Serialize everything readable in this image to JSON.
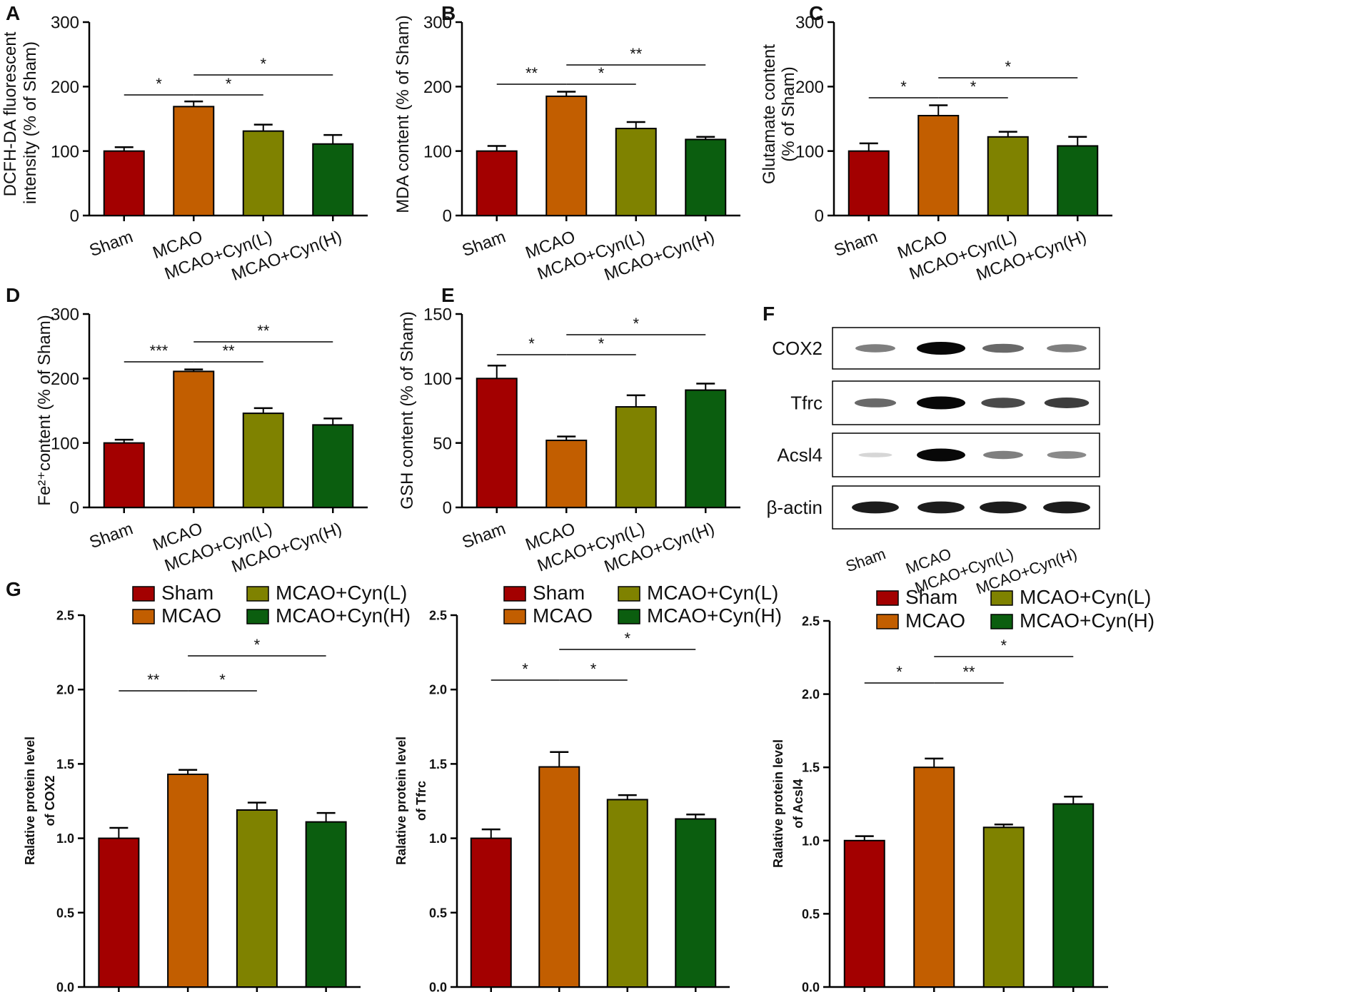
{
  "group_colors": [
    "#a30000",
    "#c25e00",
    "#7f8200",
    "#0b5e0f"
  ],
  "sig_line_color": "#000000",
  "groups": [
    "Sham",
    "MCAO",
    "MCAO+Cyn(L)",
    "MCAO+Cyn(H)"
  ],
  "chart_data": [
    {
      "id": "A",
      "type": "bar",
      "panel_letter": "A",
      "title": "",
      "ylabel_lines": [
        "DCFH-DA fluorescent",
        "intensity  (% of Sham)"
      ],
      "ylabel_bold": false,
      "categories": [
        "Sham",
        "MCAO",
        "MCAO+Cyn(L)",
        "MCAO+Cyn(H)"
      ],
      "values": [
        100,
        169,
        131,
        111
      ],
      "errors": [
        6,
        8,
        10,
        14
      ],
      "ylim": [
        0,
        300
      ],
      "yticks": [
        "0",
        "100",
        "200",
        "300"
      ],
      "significance": [
        {
          "from": 0,
          "to": 1,
          "label": "*",
          "level": 1
        },
        {
          "from": 1,
          "to": 2,
          "label": "*",
          "level": 1
        },
        {
          "from": 1,
          "to": 3,
          "label": "*",
          "level": 2
        }
      ]
    },
    {
      "id": "B",
      "type": "bar",
      "panel_letter": "B",
      "title": "",
      "ylabel_lines": [
        "MDA content  (% of Sham)"
      ],
      "ylabel_bold": false,
      "categories": [
        "Sham",
        "MCAO",
        "MCAO+Cyn(L)",
        "MCAO+Cyn(H)"
      ],
      "values": [
        100,
        185,
        135,
        118
      ],
      "errors": [
        8,
        7,
        10,
        4
      ],
      "ylim": [
        0,
        300
      ],
      "yticks": [
        "0",
        "100",
        "200",
        "300"
      ],
      "significance": [
        {
          "from": 0,
          "to": 1,
          "label": "**",
          "level": 1
        },
        {
          "from": 1,
          "to": 2,
          "label": "*",
          "level": 1
        },
        {
          "from": 1,
          "to": 3,
          "label": "**",
          "level": 2
        }
      ]
    },
    {
      "id": "C",
      "type": "bar",
      "panel_letter": "C",
      "title": "",
      "ylabel_lines": [
        "Glutamate content",
        "(% of Sham)"
      ],
      "ylabel_bold": false,
      "categories": [
        "Sham",
        "MCAO",
        "MCAO+Cyn(L)",
        "MCAO+Cyn(H)"
      ],
      "values": [
        100,
        155,
        122,
        108
      ],
      "errors": [
        12,
        16,
        8,
        14
      ],
      "ylim": [
        0,
        300
      ],
      "yticks": [
        "0",
        "100",
        "200",
        "300"
      ],
      "significance": [
        {
          "from": 0,
          "to": 1,
          "label": "*",
          "level": 1
        },
        {
          "from": 1,
          "to": 2,
          "label": "*",
          "level": 1
        },
        {
          "from": 1,
          "to": 3,
          "label": "*",
          "level": 2
        }
      ]
    },
    {
      "id": "D",
      "type": "bar",
      "panel_letter": "D",
      "title": "",
      "ylabel_lines": [
        "Fe²⁺content  (% of Sham)"
      ],
      "ylabel_bold": false,
      "categories": [
        "Sham",
        "MCAO",
        "MCAO+Cyn(L)",
        "MCAO+Cyn(H)"
      ],
      "values": [
        100,
        211,
        146,
        128
      ],
      "errors": [
        5,
        3,
        8,
        10
      ],
      "ylim": [
        0,
        300
      ],
      "yticks": [
        "0",
        "100",
        "200",
        "300"
      ],
      "significance": [
        {
          "from": 0,
          "to": 1,
          "label": "***",
          "level": 1
        },
        {
          "from": 1,
          "to": 2,
          "label": "**",
          "level": 1
        },
        {
          "from": 1,
          "to": 3,
          "label": "**",
          "level": 2
        }
      ]
    },
    {
      "id": "E",
      "type": "bar",
      "panel_letter": "E",
      "title": "",
      "ylabel_lines": [
        "GSH content  (% of Sham)"
      ],
      "ylabel_bold": false,
      "categories": [
        "Sham",
        "MCAO",
        "MCAO+Cyn(L)",
        "MCAO+Cyn(H)"
      ],
      "values": [
        100,
        52,
        78,
        91
      ],
      "errors": [
        10,
        3,
        9,
        5
      ],
      "ylim": [
        0,
        150
      ],
      "yticks": [
        "0",
        "50",
        "100",
        "150"
      ],
      "significance": [
        {
          "from": 0,
          "to": 1,
          "label": "*",
          "level": 1
        },
        {
          "from": 1,
          "to": 2,
          "label": "*",
          "level": 1
        },
        {
          "from": 1,
          "to": 3,
          "label": "*",
          "level": 2
        }
      ]
    },
    {
      "id": "G1",
      "type": "bar",
      "panel_letter": "G",
      "title": "",
      "ylabel_lines": [
        "Ralative protein level",
        "of COX2"
      ],
      "ylabel_bold": true,
      "categories": [
        "Sham",
        "MCAO",
        "MCAO+Cyn(L)",
        "MCAO+Cyn(H)"
      ],
      "values": [
        1.0,
        1.43,
        1.19,
        1.11
      ],
      "errors": [
        0.07,
        0.03,
        0.05,
        0.06
      ],
      "ylim": [
        0,
        2.5
      ],
      "yticks": [
        "0.0",
        "0.5",
        "1.0",
        "1.5",
        "2.0",
        "2.5"
      ],
      "legend": [
        "Sham",
        "MCAO+Cyn(L)",
        "MCAO",
        "MCAO+Cyn(H)"
      ],
      "significance": [
        {
          "from": 0,
          "to": 1,
          "label": "**",
          "level": 1
        },
        {
          "from": 1,
          "to": 2,
          "label": "*",
          "level": 1
        },
        {
          "from": 1,
          "to": 3,
          "label": "*",
          "level": 2
        }
      ]
    },
    {
      "id": "G2",
      "type": "bar",
      "title": "",
      "ylabel_lines": [
        "Ralative protein level",
        "of Tfrc"
      ],
      "ylabel_bold": true,
      "categories": [
        "Sham",
        "MCAO",
        "MCAO+Cyn(L)",
        "MCAO+Cyn(H)"
      ],
      "values": [
        1.0,
        1.48,
        1.26,
        1.13
      ],
      "errors": [
        0.06,
        0.1,
        0.03,
        0.03
      ],
      "ylim": [
        0,
        2.5
      ],
      "yticks": [
        "0.0",
        "0.5",
        "1.0",
        "1.5",
        "2.0",
        "2.5"
      ],
      "legend": [
        "Sham",
        "MCAO+Cyn(L)",
        "MCAO",
        "MCAO+Cyn(H)"
      ],
      "significance": [
        {
          "from": 0,
          "to": 1,
          "label": "*",
          "level": 1
        },
        {
          "from": 1,
          "to": 2,
          "label": "*",
          "level": 1
        },
        {
          "from": 1,
          "to": 3,
          "label": "*",
          "level": 2
        }
      ]
    },
    {
      "id": "G3",
      "type": "bar",
      "title": "",
      "ylabel_lines": [
        "Ralative protein level",
        "of Acsl4"
      ],
      "ylabel_bold": true,
      "categories": [
        "Sham",
        "MCAO",
        "MCAO+Cyn(L)",
        "MCAO+Cyn(H)"
      ],
      "values": [
        1.0,
        1.5,
        1.09,
        1.25
      ],
      "errors": [
        0.03,
        0.06,
        0.02,
        0.05
      ],
      "ylim": [
        0,
        2.5
      ],
      "yticks": [
        "0.0",
        "0.5",
        "1.0",
        "1.5",
        "2.0",
        "2.5"
      ],
      "legend": [
        "Sham",
        "MCAO+Cyn(L)",
        "MCAO",
        "MCAO+Cyn(H)"
      ],
      "significance": [
        {
          "from": 0,
          "to": 1,
          "label": "*",
          "level": 1
        },
        {
          "from": 1,
          "to": 2,
          "label": "**",
          "level": 1
        },
        {
          "from": 1,
          "to": 3,
          "label": "*",
          "level": 2
        }
      ]
    }
  ],
  "western_blot": {
    "panel_letter": "F",
    "rows": [
      {
        "label": "COX2",
        "intensities": [
          0.45,
          1.0,
          0.55,
          0.45
        ]
      },
      {
        "label": "Tfrc",
        "intensities": [
          0.55,
          1.0,
          0.7,
          0.75
        ]
      },
      {
        "label": "Acsl4",
        "intensities": [
          0.05,
          1.0,
          0.45,
          0.4
        ]
      },
      {
        "label": "β-actin",
        "intensities": [
          0.9,
          0.9,
          0.9,
          0.9
        ]
      }
    ],
    "lanes": [
      "Sham",
      "MCAO",
      "MCAO+Cyn(L)",
      "MCAO+Cyn(H)"
    ]
  }
}
